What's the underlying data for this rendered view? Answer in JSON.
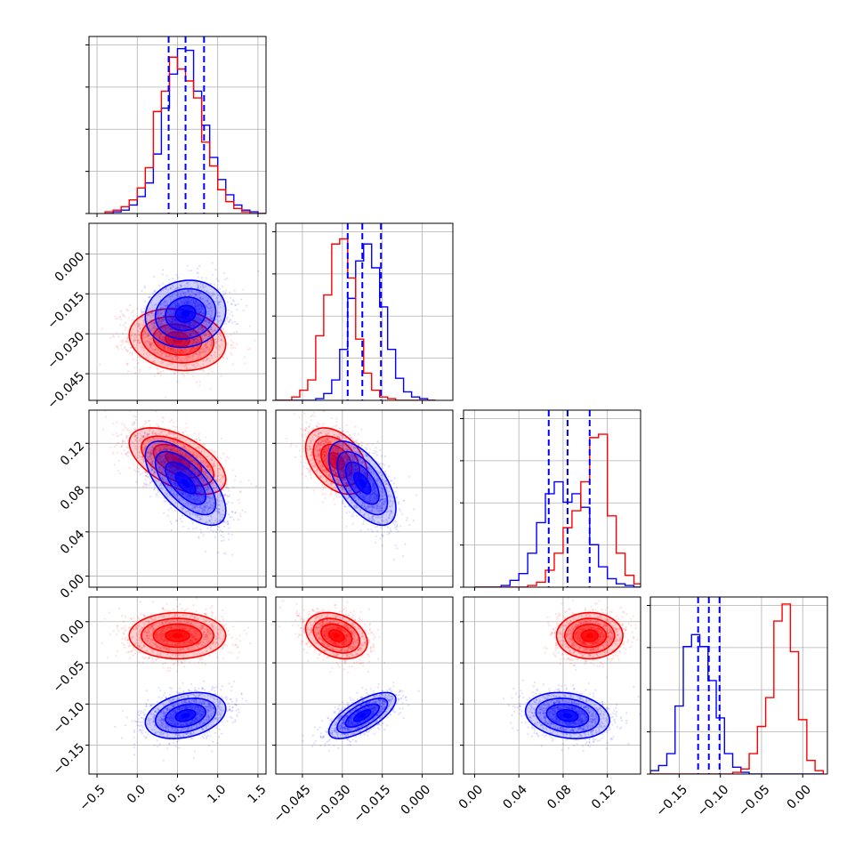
{
  "chart_data": {
    "type": "corner",
    "series": [
      {
        "name": "",
        "color": "#0000ff"
      },
      {
        "name": "",
        "color": "#ff0000"
      }
    ],
    "parameters": [
      {
        "index": 0,
        "range": [
          -0.6,
          1.6
        ],
        "ticks": [
          -0.5,
          0.0,
          0.5,
          1.0,
          1.5
        ],
        "tick_labels": [
          "−0.5",
          "0.0",
          "0.5",
          "1.0",
          "1.5"
        ],
        "quantiles": [
          0.39,
          0.6,
          0.83
        ],
        "hist": {
          "bins": [
            -0.4,
            -0.3,
            -0.2,
            -0.1,
            0.0,
            0.1,
            0.2,
            0.3,
            0.4,
            0.5,
            0.6,
            0.7,
            0.8,
            0.9,
            1.0,
            1.1,
            1.2,
            1.3,
            1.4,
            1.5,
            1.6
          ],
          "blue": [
            0,
            0.01,
            0.02,
            0.05,
            0.1,
            0.18,
            0.35,
            0.62,
            0.82,
            0.97,
            0.96,
            0.72,
            0.52,
            0.33,
            0.2,
            0.11,
            0.05,
            0.02,
            0.01,
            0
          ],
          "red": [
            0.01,
            0.02,
            0.04,
            0.08,
            0.15,
            0.27,
            0.6,
            0.72,
            0.92,
            0.85,
            0.78,
            0.68,
            0.42,
            0.28,
            0.14,
            0.07,
            0.03,
            0.01,
            0,
            0
          ]
        }
      },
      {
        "index": 1,
        "range": [
          -0.055,
          0.0115
        ],
        "ticks": [
          -0.045,
          -0.03,
          -0.015,
          0.0
        ],
        "tick_labels": [
          "−0.045",
          "−0.030",
          "−0.015",
          "0.000"
        ],
        "quantiles": [
          -0.028,
          -0.0225,
          -0.0155
        ],
        "hist": {
          "bins": [
            -0.055,
            -0.052,
            -0.049,
            -0.046,
            -0.043,
            -0.04,
            -0.037,
            -0.034,
            -0.031,
            -0.028,
            -0.025,
            -0.022,
            -0.019,
            -0.016,
            -0.013,
            -0.01,
            -0.007,
            -0.004,
            -0.001,
            0.002,
            0.005
          ],
          "blue": [
            0,
            0,
            0,
            0,
            0,
            0.01,
            0.04,
            0.12,
            0.3,
            0.6,
            0.82,
            0.92,
            0.78,
            0.55,
            0.3,
            0.13,
            0.05,
            0.02,
            0.01,
            0
          ],
          "red": [
            0,
            0,
            0.02,
            0.06,
            0.12,
            0.38,
            0.62,
            0.92,
            0.95,
            0.72,
            0.36,
            0.16,
            0.06,
            0.02,
            0.01,
            0,
            0,
            0,
            0,
            0
          ]
        }
      },
      {
        "index": 2,
        "range": [
          -0.01,
          0.15
        ],
        "ticks": [
          0.0,
          0.04,
          0.08,
          0.12
        ],
        "tick_labels": [
          "0.00",
          "0.04",
          "0.08",
          "0.12"
        ],
        "quantiles": [
          0.067,
          0.084,
          0.104
        ],
        "hist": {
          "bins": [
            0.0,
            0.008,
            0.016,
            0.024,
            0.032,
            0.04,
            0.048,
            0.056,
            0.064,
            0.072,
            0.08,
            0.088,
            0.096,
            0.104,
            0.112,
            0.12,
            0.128,
            0.136,
            0.144,
            0.152
          ],
          "blue": [
            0,
            0,
            0,
            0.01,
            0.04,
            0.08,
            0.2,
            0.38,
            0.55,
            0.62,
            0.5,
            0.55,
            0.47,
            0.25,
            0.12,
            0.05,
            0.02,
            0.01,
            0
          ],
          "red": [
            0,
            0,
            0,
            0,
            0,
            0,
            0.01,
            0.03,
            0.1,
            0.2,
            0.35,
            0.45,
            0.62,
            0.88,
            0.9,
            0.42,
            0.2,
            0.07,
            0.02
          ]
        }
      },
      {
        "index": 3,
        "range": [
          -0.185,
          0.03
        ],
        "ticks": [
          -0.15,
          -0.1,
          -0.05,
          0.0
        ],
        "tick_labels": [
          "−0.15",
          "−0.10",
          "−0.05",
          "0.00"
        ],
        "quantiles": [
          -0.127,
          -0.114,
          -0.101
        ],
        "hist": {
          "bins": [
            -0.185,
            -0.175,
            -0.165,
            -0.155,
            -0.145,
            -0.135,
            -0.125,
            -0.115,
            -0.105,
            -0.095,
            -0.085,
            -0.075,
            -0.065,
            -0.055,
            -0.045,
            -0.035,
            -0.025,
            -0.015,
            -0.005,
            0.005,
            0.015,
            0.025
          ],
          "blue": [
            0.02,
            0.05,
            0.12,
            0.4,
            0.75,
            0.82,
            0.75,
            0.55,
            0.33,
            0.12,
            0.04,
            0.01,
            0,
            0,
            0,
            0,
            0,
            0,
            0,
            0,
            0
          ],
          "red": [
            0,
            0,
            0,
            0,
            0,
            0,
            0,
            0,
            0,
            0,
            0.01,
            0.03,
            0.12,
            0.28,
            0.45,
            0.9,
            1.0,
            0.72,
            0.32,
            0.08,
            0.02
          ]
        }
      }
    ],
    "ylim_pairs": {
      "1": [
        -0.055,
        0.0115
      ],
      "2": [
        -0.01,
        0.15
      ],
      "3": [
        -0.185,
        0.03
      ]
    },
    "cross_panels": [
      {
        "row": 1,
        "col": 0,
        "blue": {
          "mean": [
            0.6,
            -0.0225
          ],
          "sd": [
            0.25,
            0.0063
          ],
          "corr": 0.1,
          "n": 1400
        },
        "red": {
          "mean": [
            0.5,
            -0.0322
          ],
          "sd": [
            0.3,
            0.0058
          ],
          "corr": -0.15,
          "n": 1400
        }
      },
      {
        "row": 2,
        "col": 0,
        "blue": {
          "mean": [
            0.6,
            0.084
          ],
          "sd": [
            0.25,
            0.019
          ],
          "corr": -0.65,
          "n": 1400
        },
        "red": {
          "mean": [
            0.5,
            0.104
          ],
          "sd": [
            0.3,
            0.015
          ],
          "corr": -0.55,
          "n": 1400
        }
      },
      {
        "row": 2,
        "col": 1,
        "blue": {
          "mean": [
            -0.0225,
            0.084
          ],
          "sd": [
            0.0063,
            0.019
          ],
          "corr": -0.6,
          "n": 1400
        },
        "red": {
          "mean": [
            -0.0322,
            0.104
          ],
          "sd": [
            0.0058,
            0.015
          ],
          "corr": -0.4,
          "n": 1400
        }
      },
      {
        "row": 3,
        "col": 0,
        "blue": {
          "mean": [
            0.6,
            -0.114
          ],
          "sd": [
            0.25,
            0.014
          ],
          "corr": 0.3,
          "n": 1400
        },
        "red": {
          "mean": [
            0.5,
            -0.017
          ],
          "sd": [
            0.3,
            0.014
          ],
          "corr": 0.0,
          "n": 1400
        }
      },
      {
        "row": 3,
        "col": 1,
        "blue": {
          "mean": [
            -0.0225,
            -0.114
          ],
          "sd": [
            0.0063,
            0.014
          ],
          "corr": 0.7,
          "n": 1400
        },
        "red": {
          "mean": [
            -0.0322,
            -0.017
          ],
          "sd": [
            0.0058,
            0.014
          ],
          "corr": -0.3,
          "n": 1400
        }
      },
      {
        "row": 3,
        "col": 2,
        "blue": {
          "mean": [
            0.084,
            -0.114
          ],
          "sd": [
            0.019,
            0.014
          ],
          "corr": -0.2,
          "n": 1400
        },
        "red": {
          "mean": [
            0.104,
            -0.017
          ],
          "sd": [
            0.015,
            0.014
          ],
          "corr": 0.0,
          "n": 1400
        }
      }
    ],
    "grid": true
  }
}
